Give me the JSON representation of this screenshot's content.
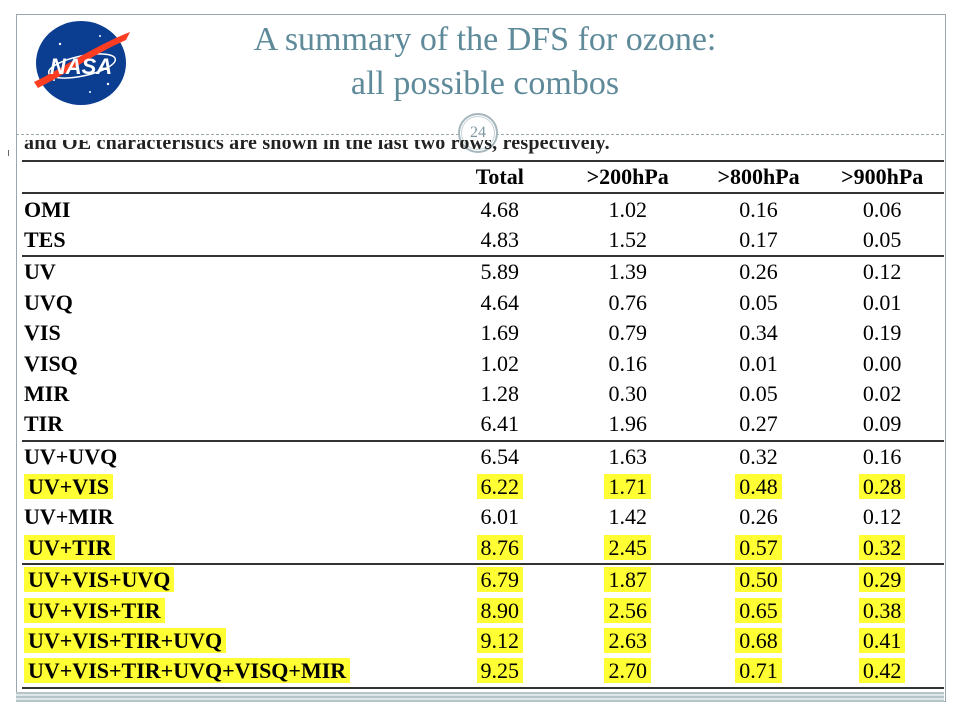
{
  "slide": {
    "title_line1": "A summary of  the DFS for ozone:",
    "title_line2": "all possible combos",
    "page_number": "24",
    "logo_text": "NASA",
    "cut_caption": "and OE characteristics are shown in the last two rows, respectively."
  },
  "table": {
    "headers": [
      "",
      "Total",
      ">200hPa",
      ">800hPa",
      ">900hPa"
    ],
    "rows": [
      {
        "name": "OMI",
        "values": [
          "4.68",
          "1.02",
          "0.16",
          "0.06"
        ],
        "highlight": false,
        "group_start": false
      },
      {
        "name": "TES",
        "values": [
          "4.83",
          "1.52",
          "0.17",
          "0.05"
        ],
        "highlight": false,
        "group_start": false
      },
      {
        "name": "UV",
        "values": [
          "5.89",
          "1.39",
          "0.26",
          "0.12"
        ],
        "highlight": false,
        "group_start": true
      },
      {
        "name": "UVQ",
        "values": [
          "4.64",
          "0.76",
          "0.05",
          "0.01"
        ],
        "highlight": false,
        "group_start": false
      },
      {
        "name": "VIS",
        "values": [
          "1.69",
          "0.79",
          "0.34",
          "0.19"
        ],
        "highlight": false,
        "group_start": false
      },
      {
        "name": "VISQ",
        "values": [
          "1.02",
          "0.16",
          "0.01",
          "0.00"
        ],
        "highlight": false,
        "group_start": false
      },
      {
        "name": "MIR",
        "values": [
          "1.28",
          "0.30",
          "0.05",
          "0.02"
        ],
        "highlight": false,
        "group_start": false
      },
      {
        "name": "TIR",
        "values": [
          "6.41",
          "1.96",
          "0.27",
          "0.09"
        ],
        "highlight": false,
        "group_start": false
      },
      {
        "name": "UV+UVQ",
        "values": [
          "6.54",
          "1.63",
          "0.32",
          "0.16"
        ],
        "highlight": false,
        "group_start": true
      },
      {
        "name": "UV+VIS",
        "values": [
          "6.22",
          "1.71",
          "0.48",
          "0.28"
        ],
        "highlight": true,
        "group_start": false
      },
      {
        "name": "UV+MIR",
        "values": [
          "6.01",
          "1.42",
          "0.26",
          "0.12"
        ],
        "highlight": false,
        "group_start": false
      },
      {
        "name": "UV+TIR",
        "values": [
          "8.76",
          "2.45",
          "0.57",
          "0.32"
        ],
        "highlight": true,
        "group_start": false
      },
      {
        "name": "UV+VIS+UVQ",
        "values": [
          "6.79",
          "1.87",
          "0.50",
          "0.29"
        ],
        "highlight": true,
        "group_start": true
      },
      {
        "name": "UV+VIS+TIR",
        "values": [
          "8.90",
          "2.56",
          "0.65",
          "0.38"
        ],
        "highlight": true,
        "group_start": false
      },
      {
        "name": "UV+VIS+TIR+UVQ",
        "values": [
          "9.12",
          "2.63",
          "0.68",
          "0.41"
        ],
        "highlight": true,
        "group_start": false
      },
      {
        "name": "UV+VIS+TIR+UVQ+VISQ+MIR",
        "values": [
          "9.25",
          "2.70",
          "0.71",
          "0.42"
        ],
        "highlight": true,
        "group_start": false
      }
    ]
  },
  "colors": {
    "title": "#5e8a9a",
    "highlight": "#ffff33",
    "nasa_blue": "#0b3d91",
    "nasa_red": "#fc3d21"
  }
}
